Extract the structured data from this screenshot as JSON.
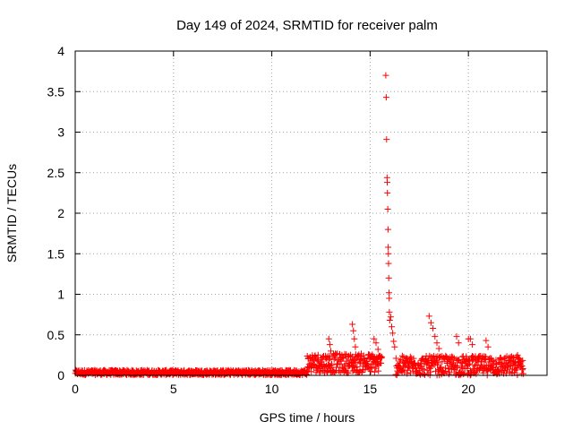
{
  "chart_data": {
    "type": "scatter",
    "title": "Day 149 of 2024, SRMTID for receiver palm",
    "xlabel": "GPS time / hours",
    "ylabel": "SRMTID / TECUs",
    "xlim": [
      0,
      24
    ],
    "ylim": [
      0,
      4
    ],
    "x_ticks": [
      0,
      5,
      10,
      15,
      20
    ],
    "x_tick_labels": [
      "0",
      "5",
      "10",
      "15",
      "20"
    ],
    "y_ticks": [
      0,
      0.5,
      1,
      1.5,
      2,
      2.5,
      3,
      3.5,
      4
    ],
    "y_tick_labels": [
      "0",
      "0.5",
      "1",
      "1.5",
      "2",
      "2.5",
      "3",
      "3.5",
      "4"
    ],
    "grid": true,
    "marker": "+",
    "marker_color": "#ff0000",
    "baseline_segments": [
      {
        "x_start": 0,
        "x_end": 11.8,
        "y_base": 0.035,
        "y_spread": 0.03
      },
      {
        "x_start": 11.8,
        "x_end": 15.6,
        "y_base": 0.15,
        "y_spread": 0.12
      },
      {
        "x_start": 16.3,
        "x_end": 22.8,
        "y_base": 0.12,
        "y_spread": 0.12
      }
    ],
    "points": [
      {
        "x": 12.9,
        "y": 0.45
      },
      {
        "x": 12.95,
        "y": 0.38
      },
      {
        "x": 13.0,
        "y": 0.3
      },
      {
        "x": 14.1,
        "y": 0.63
      },
      {
        "x": 14.15,
        "y": 0.55
      },
      {
        "x": 14.2,
        "y": 0.45
      },
      {
        "x": 14.25,
        "y": 0.35
      },
      {
        "x": 15.2,
        "y": 0.45
      },
      {
        "x": 15.3,
        "y": 0.4
      },
      {
        "x": 15.4,
        "y": 0.32
      },
      {
        "x": 15.8,
        "y": 3.7
      },
      {
        "x": 15.82,
        "y": 3.43
      },
      {
        "x": 15.84,
        "y": 2.91
      },
      {
        "x": 15.86,
        "y": 2.44
      },
      {
        "x": 15.87,
        "y": 2.38
      },
      {
        "x": 15.88,
        "y": 2.25
      },
      {
        "x": 15.9,
        "y": 2.05
      },
      {
        "x": 15.91,
        "y": 1.8
      },
      {
        "x": 15.92,
        "y": 1.58
      },
      {
        "x": 15.93,
        "y": 1.5
      },
      {
        "x": 15.94,
        "y": 1.38
      },
      {
        "x": 15.95,
        "y": 1.2
      },
      {
        "x": 15.96,
        "y": 1.02
      },
      {
        "x": 15.97,
        "y": 0.95
      },
      {
        "x": 15.98,
        "y": 0.78
      },
      {
        "x": 16.0,
        "y": 0.68
      },
      {
        "x": 16.05,
        "y": 0.72
      },
      {
        "x": 16.1,
        "y": 0.6
      },
      {
        "x": 16.15,
        "y": 0.52
      },
      {
        "x": 16.2,
        "y": 0.42
      },
      {
        "x": 16.25,
        "y": 0.35
      },
      {
        "x": 18.0,
        "y": 0.73
      },
      {
        "x": 18.1,
        "y": 0.65
      },
      {
        "x": 18.2,
        "y": 0.58
      },
      {
        "x": 18.3,
        "y": 0.48
      },
      {
        "x": 18.4,
        "y": 0.4
      },
      {
        "x": 18.5,
        "y": 0.33
      },
      {
        "x": 19.4,
        "y": 0.48
      },
      {
        "x": 19.5,
        "y": 0.4
      },
      {
        "x": 20.0,
        "y": 0.45
      },
      {
        "x": 20.1,
        "y": 0.45
      },
      {
        "x": 20.2,
        "y": 0.38
      },
      {
        "x": 20.9,
        "y": 0.43
      },
      {
        "x": 21.0,
        "y": 0.35
      },
      {
        "x": 22.5,
        "y": 0.25
      },
      {
        "x": 22.6,
        "y": 0.2
      }
    ]
  }
}
